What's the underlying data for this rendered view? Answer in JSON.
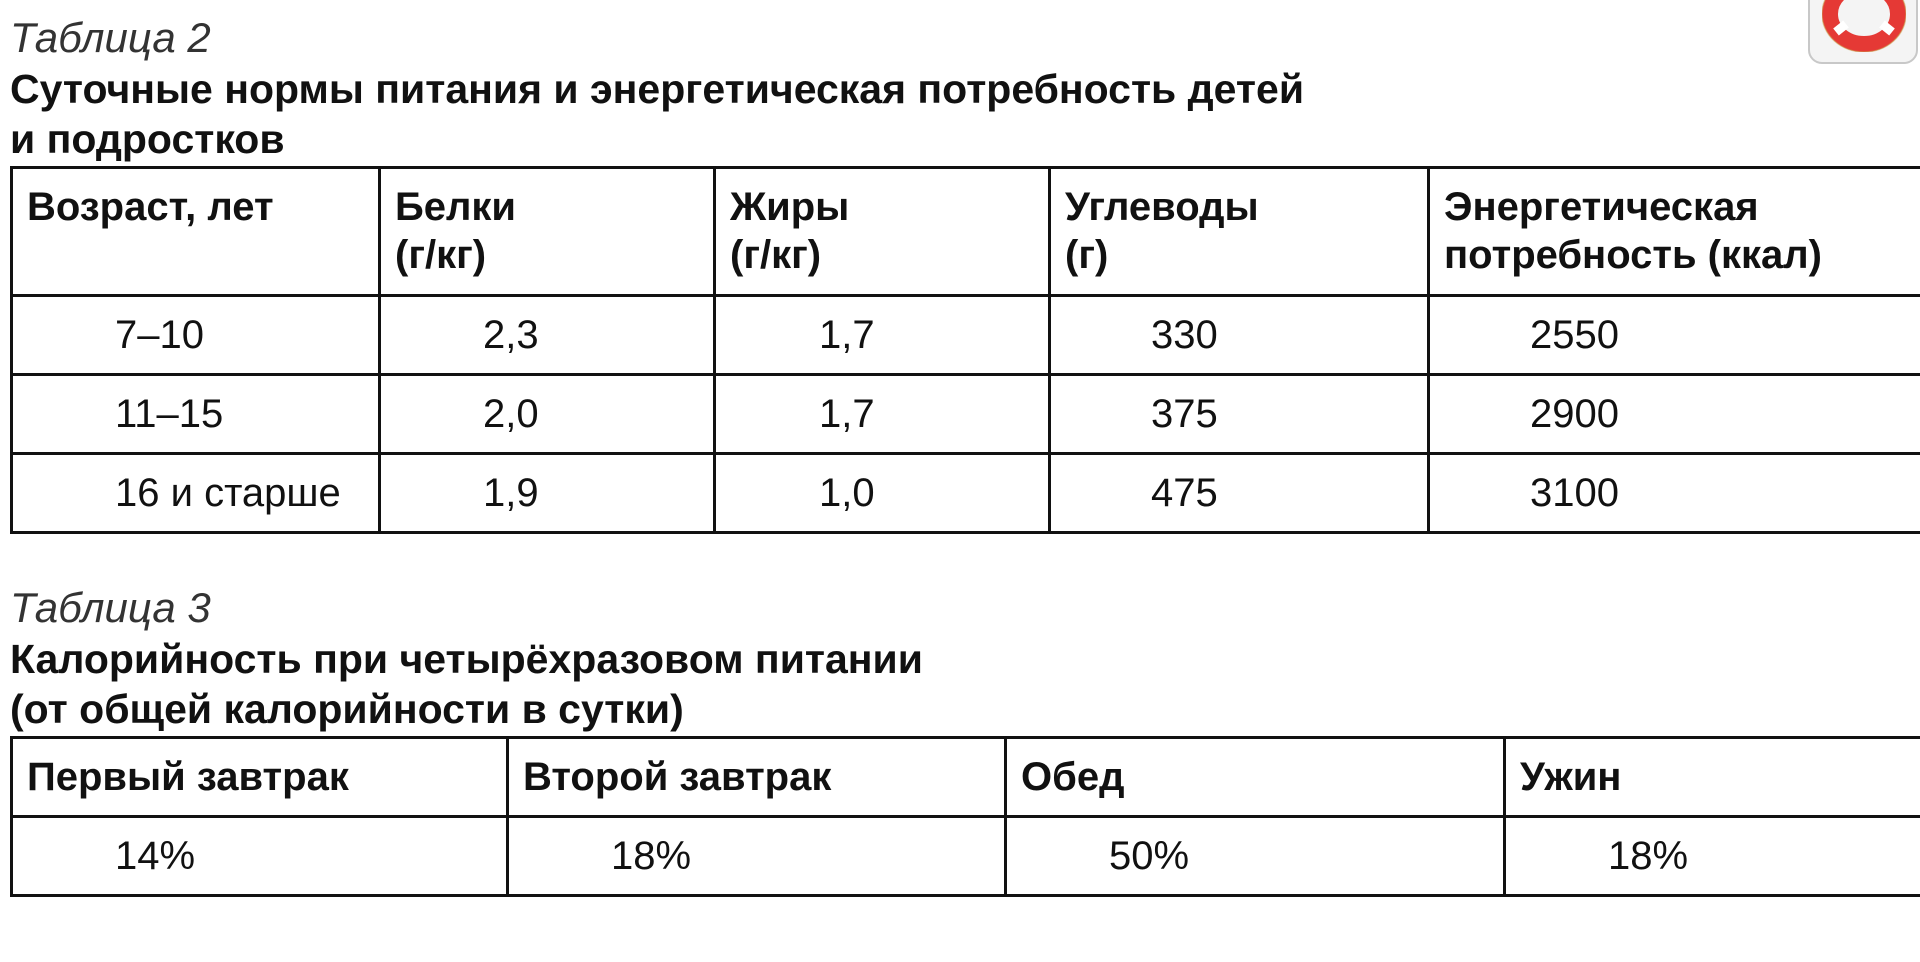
{
  "table2": {
    "caption": "Таблица 2",
    "title_lines": [
      "Суточные нормы питания и энергетическая потребность детей",
      "и подростков"
    ],
    "headers": [
      [
        "Возраст, лет"
      ],
      [
        "Белки",
        "(г/кг)"
      ],
      [
        "Жиры",
        "(г/кг)"
      ],
      [
        "Углеводы",
        "(г)"
      ],
      [
        "Энергетическая",
        "потребность (ккал)"
      ]
    ],
    "rows": [
      [
        "7–10",
        "2,3",
        "1,7",
        "330",
        "2550"
      ],
      [
        "11–15",
        "2,0",
        "1,7",
        "375",
        "2900"
      ],
      [
        "16 и старше",
        "1,9",
        "1,0",
        "475",
        "3100"
      ]
    ]
  },
  "table3": {
    "caption": "Таблица 3",
    "title_lines": [
      "Калорийность при четырёхразовом питании",
      "(от общей калорийности в сутки)"
    ],
    "headers": [
      "Первый завтрак",
      "Второй завтрак",
      "Обед",
      "Ужин"
    ],
    "values": [
      "14%",
      "18%",
      "50%",
      "18%"
    ]
  },
  "help_button": {
    "icon": "lifebuoy-icon",
    "colors": {
      "ring": "#e53935",
      "band": "#ffffff"
    }
  }
}
